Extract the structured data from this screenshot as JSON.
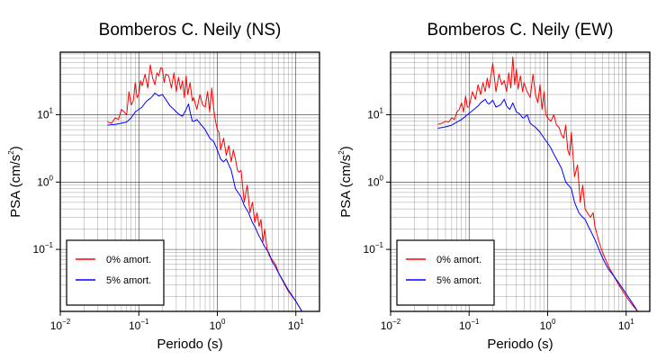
{
  "figure": {
    "colors": {
      "undamped": "#ff0000",
      "damped": "#0000ff",
      "grid": "#000000"
    }
  },
  "chart_data": [
    {
      "type": "line",
      "title": "Bomberos C. Neily (NS)",
      "xlabel": "Periodo (s)",
      "ylabel": "PSA (cm/s",
      "ylabel_sup": "2",
      "ylabel_close": ")",
      "x_scale": "log",
      "y_scale": "log",
      "xlim": [
        0.01,
        20
      ],
      "ylim": [
        0.012,
        85
      ],
      "grid": true,
      "xticks": [
        {
          "value": 0.01,
          "base": "10",
          "exp": "−2"
        },
        {
          "value": 0.1,
          "base": "10",
          "exp": "−1"
        },
        {
          "value": 1,
          "base": "10",
          "exp": "0"
        },
        {
          "value": 10,
          "base": "10",
          "exp": "1"
        }
      ],
      "yticks": [
        {
          "value": 0.1,
          "base": "10",
          "exp": "−1"
        },
        {
          "value": 1,
          "base": "10",
          "exp": "0"
        },
        {
          "value": 10,
          "base": "10",
          "exp": "1"
        }
      ],
      "legend": {
        "position": "bottom-left",
        "entries": [
          "0% amort.",
          "5% amort."
        ]
      },
      "series": [
        {
          "name": "0% amort.",
          "color": "#ff0000",
          "x": [
            0.04,
            0.045,
            0.05,
            0.055,
            0.06,
            0.065,
            0.07,
            0.075,
            0.08,
            0.085,
            0.09,
            0.095,
            0.1,
            0.105,
            0.11,
            0.12,
            0.13,
            0.14,
            0.15,
            0.16,
            0.17,
            0.18,
            0.19,
            0.2,
            0.21,
            0.22,
            0.24,
            0.26,
            0.28,
            0.3,
            0.32,
            0.34,
            0.36,
            0.38,
            0.4,
            0.42,
            0.45,
            0.48,
            0.5,
            0.55,
            0.6,
            0.65,
            0.7,
            0.75,
            0.8,
            0.85,
            0.9,
            0.95,
            1.0,
            1.05,
            1.1,
            1.2,
            1.3,
            1.4,
            1.5,
            1.6,
            1.7,
            1.8,
            1.9,
            2.0,
            2.2,
            2.4,
            2.6,
            2.8,
            3.0,
            3.2,
            3.4,
            3.6,
            3.8,
            4.0,
            4.3,
            4.6,
            5.0,
            5.5,
            6.0,
            7.0,
            8.0,
            10.0,
            12.0
          ],
          "values": [
            7.8,
            7.5,
            9.0,
            8.5,
            12.0,
            11.0,
            10.0,
            22.0,
            14.0,
            16.0,
            30.0,
            18.0,
            20.0,
            32.0,
            27.0,
            40.0,
            25.0,
            55.0,
            35.0,
            28.0,
            42.0,
            38.0,
            50.0,
            48.0,
            30.0,
            40.0,
            38.0,
            25.0,
            42.0,
            22.0,
            36.0,
            24.0,
            32.0,
            18.0,
            38.0,
            20.0,
            30.0,
            16.0,
            18.0,
            12.0,
            20.0,
            14.0,
            13.0,
            22.0,
            11.0,
            25.0,
            12.0,
            8.0,
            6.0,
            5.5,
            3.0,
            4.5,
            2.5,
            3.5,
            2.0,
            3.0,
            2.2,
            1.5,
            1.4,
            1.5,
            0.5,
            0.9,
            0.35,
            0.5,
            0.25,
            0.35,
            0.22,
            0.28,
            0.13,
            0.2,
            0.1,
            0.08,
            0.07,
            0.06,
            0.045,
            0.032,
            0.024,
            0.017,
            0.012
          ]
        },
        {
          "name": "5% amort.",
          "color": "#0000ff",
          "x": [
            0.04,
            0.05,
            0.06,
            0.07,
            0.08,
            0.09,
            0.1,
            0.11,
            0.12,
            0.13,
            0.14,
            0.15,
            0.16,
            0.17,
            0.18,
            0.2,
            0.22,
            0.25,
            0.28,
            0.3,
            0.33,
            0.36,
            0.4,
            0.43,
            0.45,
            0.48,
            0.5,
            0.55,
            0.6,
            0.7,
            0.8,
            0.9,
            1.0,
            1.1,
            1.2,
            1.3,
            1.5,
            1.7,
            2.0,
            2.2,
            2.5,
            2.8,
            3.0,
            3.3,
            3.6,
            4.0,
            4.5,
            5.0,
            5.5,
            6.0,
            7.0,
            8.0,
            10.0,
            12.0
          ],
          "values": [
            7.0,
            7.2,
            7.5,
            7.8,
            9.0,
            11.0,
            12.0,
            13.0,
            15.0,
            16.5,
            17.5,
            19.0,
            21.0,
            20.0,
            19.0,
            20.0,
            17.0,
            13.5,
            12.0,
            11.0,
            10.0,
            9.5,
            12.0,
            14.5,
            11.0,
            8.0,
            8.0,
            8.5,
            7.5,
            6.0,
            4.5,
            4.0,
            3.0,
            2.2,
            2.0,
            2.2,
            1.5,
            0.8,
            0.6,
            0.45,
            0.35,
            0.25,
            0.22,
            0.17,
            0.14,
            0.11,
            0.09,
            0.065,
            0.055,
            0.045,
            0.033,
            0.025,
            0.017,
            0.012
          ]
        }
      ]
    },
    {
      "type": "line",
      "title": "Bomberos C. Neily (EW)",
      "xlabel": "Periodo (s)",
      "ylabel": "PSA (cm/s",
      "ylabel_sup": "2",
      "ylabel_close": ")",
      "x_scale": "log",
      "y_scale": "log",
      "xlim": [
        0.01,
        20
      ],
      "ylim": [
        0.012,
        85
      ],
      "grid": true,
      "xticks": [
        {
          "value": 0.01,
          "base": "10",
          "exp": "−2"
        },
        {
          "value": 0.1,
          "base": "10",
          "exp": "−1"
        },
        {
          "value": 1,
          "base": "10",
          "exp": "0"
        },
        {
          "value": 10,
          "base": "10",
          "exp": "1"
        }
      ],
      "yticks": [
        {
          "value": 0.1,
          "base": "10",
          "exp": "−1"
        },
        {
          "value": 1,
          "base": "10",
          "exp": "0"
        },
        {
          "value": 10,
          "base": "10",
          "exp": "1"
        }
      ],
      "legend": {
        "position": "bottom-left",
        "entries": [
          "0% amort.",
          "5% amort."
        ]
      },
      "series": [
        {
          "name": "0% amort.",
          "color": "#ff0000",
          "x": [
            0.04,
            0.045,
            0.05,
            0.055,
            0.06,
            0.065,
            0.07,
            0.075,
            0.08,
            0.085,
            0.09,
            0.095,
            0.1,
            0.11,
            0.12,
            0.13,
            0.14,
            0.15,
            0.16,
            0.17,
            0.18,
            0.2,
            0.22,
            0.24,
            0.26,
            0.28,
            0.3,
            0.32,
            0.34,
            0.36,
            0.38,
            0.4,
            0.42,
            0.45,
            0.48,
            0.5,
            0.55,
            0.6,
            0.65,
            0.7,
            0.75,
            0.8,
            0.85,
            0.9,
            0.95,
            1.0,
            1.1,
            1.2,
            1.3,
            1.4,
            1.5,
            1.6,
            1.7,
            1.8,
            1.9,
            2.0,
            2.2,
            2.4,
            2.6,
            2.8,
            3.0,
            3.2,
            3.5,
            3.8,
            4.0,
            4.5,
            5.0,
            6.0,
            7.0,
            8.0,
            10.0,
            12.0,
            14.0
          ],
          "values": [
            7.2,
            7.5,
            8.0,
            7.8,
            9.0,
            8.5,
            11.0,
            12.0,
            15.0,
            11.0,
            19.0,
            13.0,
            13.0,
            22.0,
            17.0,
            28.0,
            20.0,
            30.0,
            22.0,
            35.0,
            25.0,
            58.0,
            22.0,
            40.0,
            28.0,
            32.0,
            22.0,
            42.0,
            25.0,
            72.0,
            28.0,
            48.0,
            24.0,
            38.0,
            22.0,
            30.0,
            22.0,
            18.0,
            40.0,
            20.0,
            15.0,
            28.0,
            12.0,
            22.0,
            10.0,
            9.0,
            8.0,
            10.0,
            7.0,
            6.5,
            5.0,
            4.5,
            7.0,
            3.0,
            2.5,
            5.5,
            1.2,
            1.8,
            0.5,
            0.9,
            0.4,
            0.35,
            0.3,
            0.35,
            0.22,
            0.13,
            0.09,
            0.055,
            0.04,
            0.03,
            0.02,
            0.015,
            0.012
          ]
        },
        {
          "name": "5% amort.",
          "color": "#0000ff",
          "x": [
            0.04,
            0.05,
            0.06,
            0.07,
            0.08,
            0.09,
            0.1,
            0.11,
            0.12,
            0.13,
            0.14,
            0.15,
            0.16,
            0.17,
            0.18,
            0.2,
            0.22,
            0.25,
            0.28,
            0.3,
            0.33,
            0.36,
            0.4,
            0.43,
            0.45,
            0.48,
            0.5,
            0.55,
            0.6,
            0.7,
            0.8,
            0.9,
            1.0,
            1.1,
            1.2,
            1.3,
            1.5,
            1.7,
            2.0,
            2.2,
            2.5,
            2.8,
            3.0,
            3.3,
            3.6,
            4.0,
            4.5,
            5.0,
            5.5,
            6.0,
            7.0,
            8.0,
            10.0,
            12.0,
            14.0
          ],
          "values": [
            6.3,
            6.6,
            7.0,
            7.8,
            8.5,
            9.5,
            10.5,
            11.5,
            12.5,
            13.5,
            15.0,
            16.0,
            17.0,
            15.0,
            14.5,
            16.5,
            13.0,
            14.0,
            17.0,
            13.5,
            12.0,
            15.0,
            11.0,
            10.5,
            10.0,
            9.0,
            9.0,
            10.0,
            7.5,
            6.5,
            5.5,
            4.5,
            3.8,
            3.2,
            2.6,
            2.2,
            1.6,
            1.0,
            0.8,
            0.5,
            0.35,
            0.3,
            0.28,
            0.22,
            0.18,
            0.14,
            0.1,
            0.075,
            0.06,
            0.05,
            0.04,
            0.032,
            0.022,
            0.016,
            0.012
          ]
        }
      ]
    }
  ]
}
